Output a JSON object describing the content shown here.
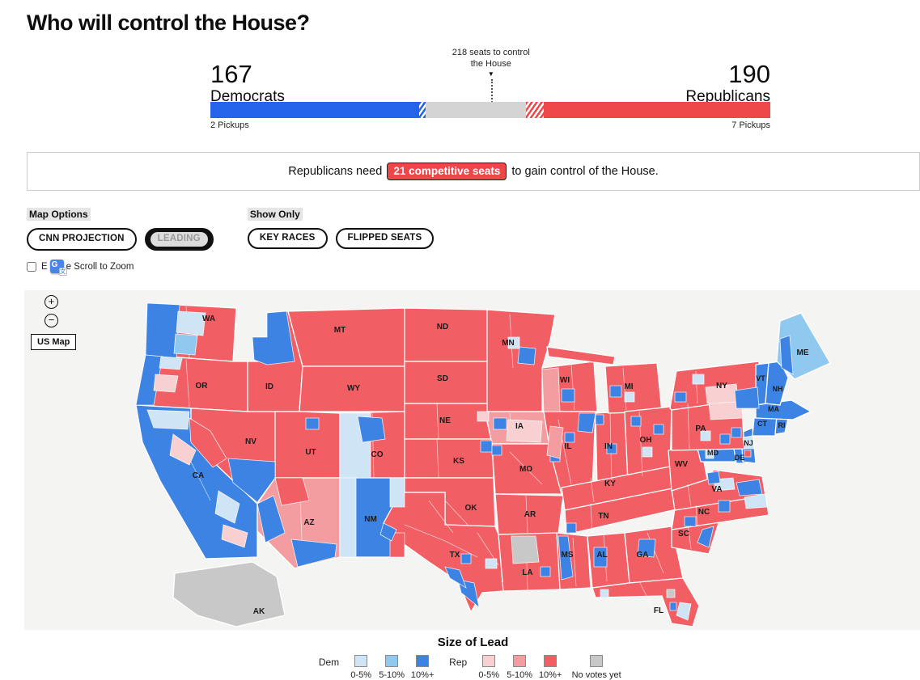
{
  "page": {
    "title": "Who will control the House?"
  },
  "balance_of_power": {
    "dem": {
      "count": "167",
      "label": "Democrats",
      "pickups": "2 Pickups",
      "seats": 167,
      "color": "#2563eb"
    },
    "rep": {
      "count": "190",
      "label": "Republicans",
      "pickups": "7 Pickups",
      "seats": 190,
      "color": "#ee484b"
    },
    "marker": {
      "line1": "218 seats to control",
      "line2": "the House",
      "arrow": "▼",
      "control_seats": 218
    },
    "bar_gray": "#d4d4d4"
  },
  "banner": {
    "prefix": "Republicans need",
    "highlight": "21 competitive seats",
    "suffix": "to gain control of the House.",
    "badge_color": "#ee4649"
  },
  "controls": {
    "button_groups": [
      {
        "label": "Map Options",
        "buttons": [
          {
            "label": "CNN PROJECTION",
            "selected": false
          },
          {
            "label": "LEADING",
            "selected": true
          }
        ]
      },
      {
        "label": "Show Only",
        "buttons": [
          {
            "label": "KEY RACES",
            "selected": false
          },
          {
            "label": "FLIPPED SEATS",
            "selected": false
          }
        ]
      }
    ],
    "zoom_checkbox": {
      "prefix": "E",
      "suffix": "e Scroll to Zoom",
      "icon": {
        "primary": "G",
        "secondary": "文"
      }
    }
  },
  "map": {
    "zoom_in_label": "+",
    "zoom_out_label": "−",
    "us_map_label": "US Map",
    "background": "#f4f4f2",
    "states": [
      {
        "abbr": "WA",
        "lead": "rep-10"
      },
      {
        "abbr": "OR",
        "lead": "rep-10"
      },
      {
        "abbr": "CA",
        "lead": "dem-10"
      },
      {
        "abbr": "NV",
        "lead": "rep-10"
      },
      {
        "abbr": "ID",
        "lead": "rep-10"
      },
      {
        "abbr": "MT",
        "lead": "rep-10"
      },
      {
        "abbr": "WY",
        "lead": "rep-10"
      },
      {
        "abbr": "UT",
        "lead": "rep-10"
      },
      {
        "abbr": "CO",
        "lead": "rep-10"
      },
      {
        "abbr": "AZ",
        "lead": "rep-5"
      },
      {
        "abbr": "NM",
        "lead": "dem-10"
      },
      {
        "abbr": "ND",
        "lead": "rep-10"
      },
      {
        "abbr": "SD",
        "lead": "rep-10"
      },
      {
        "abbr": "NE",
        "lead": "rep-10"
      },
      {
        "abbr": "KS",
        "lead": "rep-10"
      },
      {
        "abbr": "OK",
        "lead": "rep-10"
      },
      {
        "abbr": "TX",
        "lead": "rep-10"
      },
      {
        "abbr": "MN",
        "lead": "rep-10"
      },
      {
        "abbr": "IA",
        "lead": "rep-5"
      },
      {
        "abbr": "MO",
        "lead": "rep-10"
      },
      {
        "abbr": "AR",
        "lead": "rep-10"
      },
      {
        "abbr": "LA",
        "lead": "rep-10"
      },
      {
        "abbr": "WI",
        "lead": "rep-10"
      },
      {
        "abbr": "IL",
        "lead": "rep-10"
      },
      {
        "abbr": "IN",
        "lead": "rep-10"
      },
      {
        "abbr": "MI",
        "lead": "rep-10"
      },
      {
        "abbr": "OH",
        "lead": "rep-10"
      },
      {
        "abbr": "KY",
        "lead": "rep-10"
      },
      {
        "abbr": "TN",
        "lead": "rep-10"
      },
      {
        "abbr": "MS",
        "lead": "rep-10"
      },
      {
        "abbr": "AL",
        "lead": "rep-10"
      },
      {
        "abbr": "GA",
        "lead": "rep-10"
      },
      {
        "abbr": "FL",
        "lead": "rep-10"
      },
      {
        "abbr": "SC",
        "lead": "rep-10"
      },
      {
        "abbr": "NC",
        "lead": "rep-10"
      },
      {
        "abbr": "VA",
        "lead": "rep-10"
      },
      {
        "abbr": "WV",
        "lead": "rep-10"
      },
      {
        "abbr": "MD",
        "lead": "dem-10"
      },
      {
        "abbr": "DE",
        "lead": "dem-10"
      },
      {
        "abbr": "NJ",
        "lead": "dem-10"
      },
      {
        "abbr": "PA",
        "lead": "rep-10"
      },
      {
        "abbr": "NY",
        "lead": "rep-10"
      },
      {
        "abbr": "CT",
        "lead": "dem-10"
      },
      {
        "abbr": "RI",
        "lead": "dem-10"
      },
      {
        "abbr": "MA",
        "lead": "dem-10"
      },
      {
        "abbr": "VT",
        "lead": "dem-10"
      },
      {
        "abbr": "NH",
        "lead": "dem-10"
      },
      {
        "abbr": "ME",
        "lead": "dem-5"
      },
      {
        "abbr": "AK",
        "lead": "none"
      }
    ]
  },
  "legend": {
    "title": "Size of Lead",
    "color_map": {
      "dem-0": "#cfe4f4",
      "dem-5": "#8fc9ef",
      "dem-10": "#3c83e3",
      "rep-0": "#f8d0d2",
      "rep-5": "#f49da1",
      "rep-10": "#f15e64",
      "none": "#c8c8c8"
    },
    "groups": [
      {
        "label": "Dem",
        "items": [
          {
            "label": "0-5%",
            "key": "dem-0"
          },
          {
            "label": "5-10%",
            "key": "dem-5"
          },
          {
            "label": "10%+",
            "key": "dem-10"
          }
        ]
      },
      {
        "label": "Rep",
        "items": [
          {
            "label": "0-5%",
            "key": "rep-0"
          },
          {
            "label": "5-10%",
            "key": "rep-5"
          },
          {
            "label": "10%+",
            "key": "rep-10"
          }
        ]
      }
    ],
    "no_votes": {
      "label": "No votes yet",
      "key": "none"
    }
  }
}
